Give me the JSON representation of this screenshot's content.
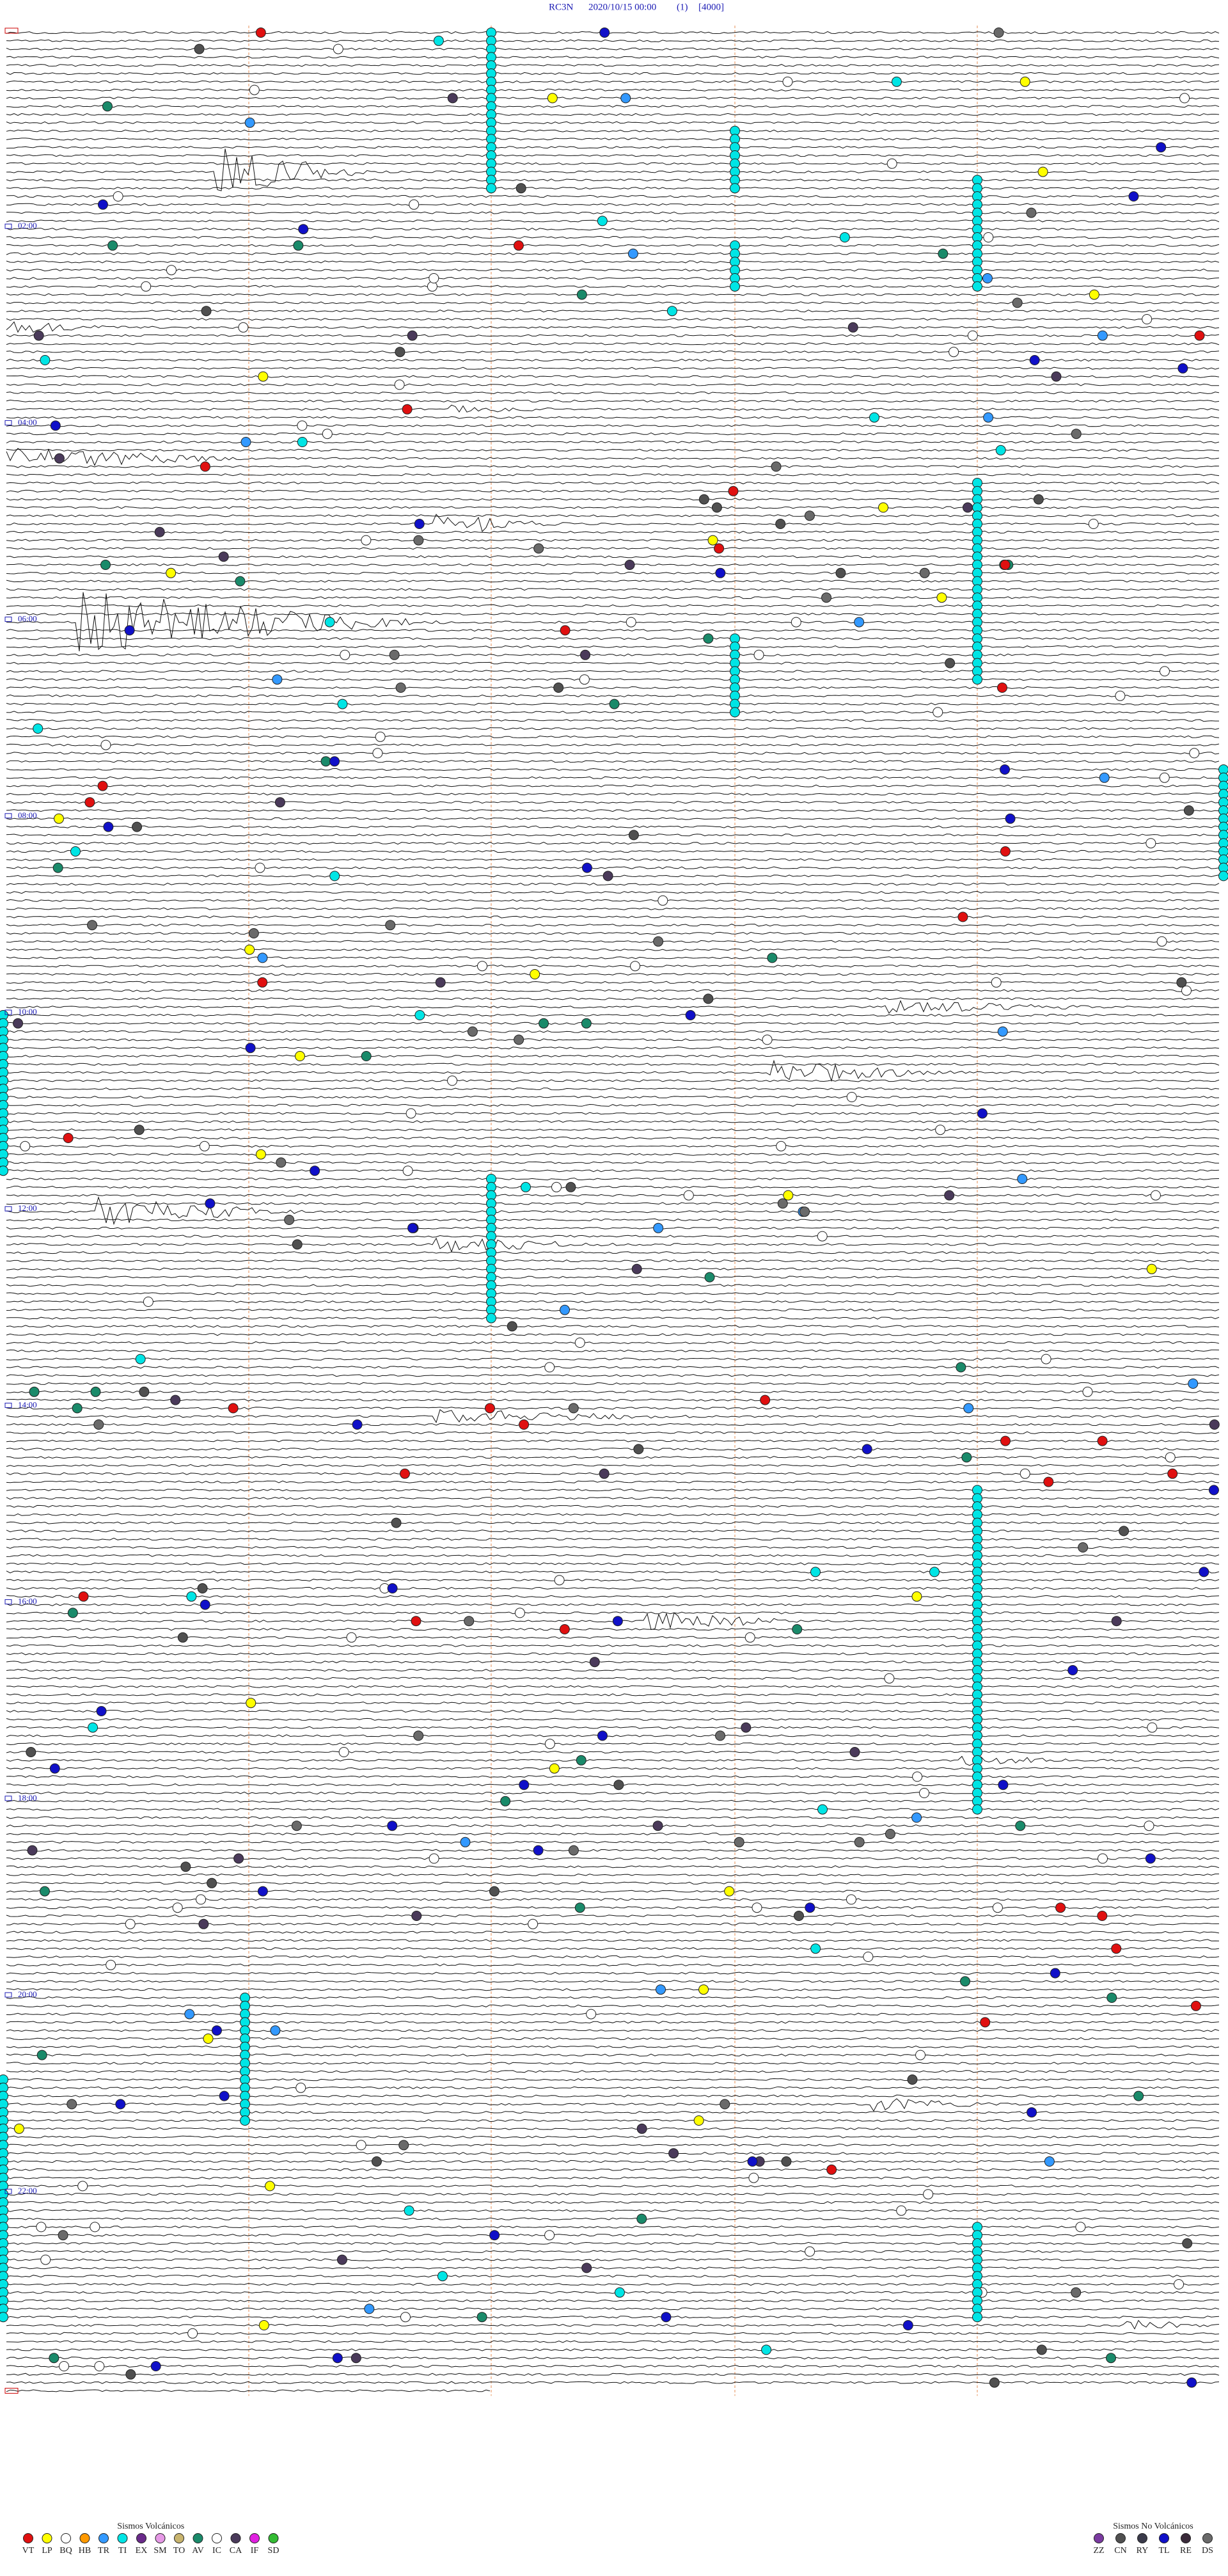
{
  "header": {
    "station": "RC3N",
    "datetime": "2020/10/15 00:00",
    "channel": "(1)",
    "scale": "[4000]"
  },
  "time_labels": [
    "02:00",
    "04:00",
    "06:00",
    "08:00",
    "10:00",
    "12:00",
    "14:00",
    "16:00",
    "18:00",
    "20:00",
    "22:00"
  ],
  "legend": {
    "volcanic": {
      "title": "Sismos Volcánicos",
      "items": [
        {
          "code": "VT",
          "color": "#e01010"
        },
        {
          "code": "LP",
          "color": "#ffff00"
        },
        {
          "code": "BQ",
          "color": "#ffffff"
        },
        {
          "code": "HB",
          "color": "#ff9900"
        },
        {
          "code": "TR",
          "color": "#3399ff"
        },
        {
          "code": "TI",
          "color": "#00e5e5"
        },
        {
          "code": "EX",
          "color": "#6a2a8a"
        },
        {
          "code": "SM",
          "color": "#e699e6"
        },
        {
          "code": "TO",
          "color": "#c8b46e"
        },
        {
          "code": "AV",
          "color": "#1a8a6a"
        },
        {
          "code": "IC",
          "color": "#ffffff"
        },
        {
          "code": "CA",
          "color": "#4a3a5a"
        },
        {
          "code": "IF",
          "color": "#e020e0"
        },
        {
          "code": "SD",
          "color": "#33bb33"
        }
      ]
    },
    "non_volcanic": {
      "title": "Sismos No Volcánicos",
      "items": [
        {
          "code": "ZZ",
          "color": "#7a3aa0"
        },
        {
          "code": "CN",
          "color": "#505050"
        },
        {
          "code": "RY",
          "color": "#3a3a4a"
        },
        {
          "code": "TL",
          "color": "#1010c8"
        },
        {
          "code": "RE",
          "color": "#3a2a3a"
        },
        {
          "code": "DS",
          "color": "#6a6a6a"
        }
      ]
    }
  }
}
